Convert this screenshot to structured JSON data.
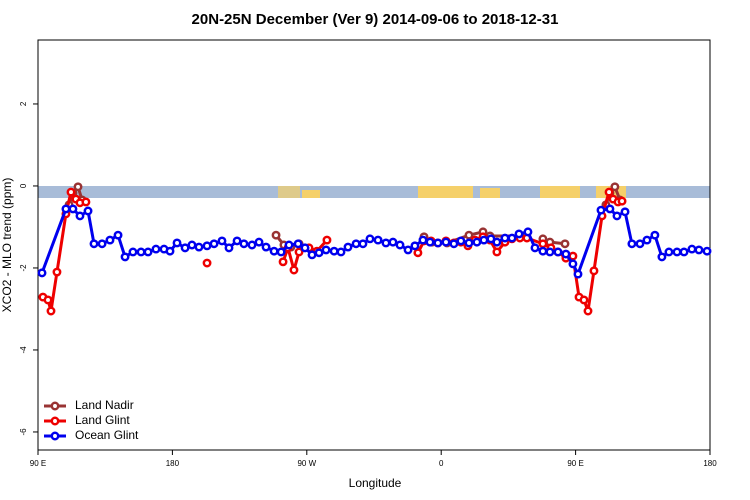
{
  "chart_data": {
    "type": "line",
    "title": "20N-25N December (Ver 9)   2014-09-06 to 2018-12-31",
    "x_label": "Longitude",
    "y_label": "XCO2 - MLO trend (ppm)",
    "xlim": [
      90,
      540
    ],
    "xticks": [
      {
        "value": 90,
        "label": "90 E"
      },
      180,
      {
        "value": 270,
        "label": "90 W"
      },
      {
        "value": 360,
        "label": "0"
      },
      {
        "value": 450,
        "label": "90 E"
      },
      {
        "value": 540,
        "label": "180"
      }
    ],
    "ylim": [
      -6.44,
      3.56
    ],
    "yticks": [
      -6,
      -4,
      -2,
      0,
      2
    ],
    "legend": "bottom-left",
    "series": [
      {
        "name": "Land Nadir",
        "color": "#993333",
        "x": [
          110.8,
          113.4,
          116.8,
          119.5,
          null,
          249.4,
          254.7,
          259.4,
          264.8,
          null,
          348.5,
          353.8,
          363.9,
          378.6,
          388.0,
          392.7,
          412.7,
          null,
          428.1,
          432.8,
          442.9,
          null,
          470.3,
          473.0,
          476.3,
          479.7
        ],
        "values": [
          -0.46,
          -0.17,
          -0.02,
          -0.34,
          null,
          -1.2,
          -1.44,
          -1.49,
          -1.41,
          null,
          -1.24,
          -1.37,
          -1.39,
          -1.2,
          -1.12,
          -1.22,
          -1.22,
          null,
          -1.29,
          -1.37,
          -1.41,
          null,
          -0.46,
          -0.17,
          -0.02,
          -0.34
        ]
      },
      {
        "name": "Land Glint",
        "color": "#ee0000",
        "x": [
          93.3,
          96.7,
          98.7,
          102.7,
          108.7,
          112.1,
          115.4,
          118.1,
          122.1,
          null,
          203.2,
          null,
          254.1,
          257.4,
          261.4,
          264.8,
          271.5,
          276.8,
          283.5,
          null,
          344.4,
          348.5,
          353.2,
          357.8,
          363.2,
          368.5,
          373.2,
          377.9,
          382.6,
          388.0,
          392.7,
          397.3,
          402.7,
          407.4,
          412.7,
          417.4,
          428.1,
          433.5,
          438.2,
          443.5,
          448.2,
          452.3,
          455.6,
          458.3,
          462.3,
          467.7,
          472.4,
          475.1,
          478.4,
          481.1
        ],
        "values": [
          -2.71,
          -2.78,
          -3.05,
          -2.1,
          -0.68,
          -0.15,
          -0.32,
          -0.41,
          -0.39,
          null,
          -1.88,
          null,
          -1.85,
          -1.51,
          -2.05,
          -1.61,
          -1.51,
          -1.59,
          -1.32,
          null,
          -1.63,
          -1.34,
          -1.34,
          -1.39,
          -1.34,
          -1.39,
          -1.37,
          -1.46,
          -1.32,
          -1.24,
          -1.32,
          -1.61,
          -1.37,
          -1.29,
          -1.27,
          -1.27,
          -1.41,
          -1.51,
          -1.61,
          -1.76,
          -1.71,
          -2.71,
          -2.78,
          -3.05,
          -2.07,
          -0.73,
          -0.15,
          -0.32,
          -0.39,
          -0.37
        ]
      },
      {
        "name": "Ocean Glint",
        "color": "#0000ee",
        "x": [
          92.7,
          108.7,
          113.4,
          118.1,
          123.5,
          127.5,
          132.9,
          138.2,
          143.6,
          148.3,
          153.6,
          159.0,
          163.7,
          169.0,
          174.4,
          178.4,
          183.1,
          188.5,
          193.1,
          197.8,
          203.2,
          207.9,
          213.2,
          217.9,
          223.3,
          227.9,
          233.3,
          238.0,
          242.7,
          248.1,
          252.8,
          258.1,
          264.2,
          268.8,
          273.5,
          278.2,
          282.9,
          288.3,
          292.9,
          297.6,
          303.0,
          307.6,
          312.3,
          317.7,
          323.0,
          327.7,
          332.4,
          337.8,
          342.4,
          347.8,
          352.5,
          357.8,
          363.2,
          368.5,
          373.2,
          378.6,
          383.9,
          388.6,
          393.3,
          397.3,
          402.7,
          407.4,
          412.1,
          418.1,
          422.8,
          428.1,
          432.8,
          438.2,
          443.5,
          448.2,
          451.6,
          467.0,
          473.0,
          477.7,
          483.1,
          487.7,
          493.1,
          497.8,
          503.1,
          507.8,
          512.5,
          517.9,
          522.6,
          527.9,
          532.6,
          538.0
        ],
        "values": [
          -2.12,
          -0.56,
          -0.56,
          -0.73,
          -0.61,
          -1.41,
          -1.41,
          -1.32,
          -1.2,
          -1.73,
          -1.61,
          -1.61,
          -1.61,
          -1.54,
          -1.54,
          -1.59,
          -1.39,
          -1.51,
          -1.44,
          -1.49,
          -1.46,
          -1.41,
          -1.34,
          -1.51,
          -1.34,
          -1.41,
          -1.44,
          -1.37,
          -1.49,
          -1.59,
          -1.61,
          -1.44,
          -1.41,
          -1.51,
          -1.68,
          -1.63,
          -1.56,
          -1.59,
          -1.61,
          -1.49,
          -1.41,
          -1.41,
          -1.29,
          -1.32,
          -1.39,
          -1.37,
          -1.44,
          -1.56,
          -1.46,
          -1.32,
          -1.37,
          -1.39,
          -1.37,
          -1.41,
          -1.34,
          -1.39,
          -1.37,
          -1.32,
          -1.29,
          -1.37,
          -1.27,
          -1.27,
          -1.17,
          -1.12,
          -1.51,
          -1.59,
          -1.61,
          -1.61,
          -1.66,
          -1.9,
          -2.15,
          -0.59,
          -0.56,
          -0.73,
          -0.63,
          -1.41,
          -1.41,
          -1.32,
          -1.2,
          -1.73,
          -1.61,
          -1.61,
          -1.61,
          -1.54,
          -1.56,
          -1.59
        ]
      }
    ]
  }
}
